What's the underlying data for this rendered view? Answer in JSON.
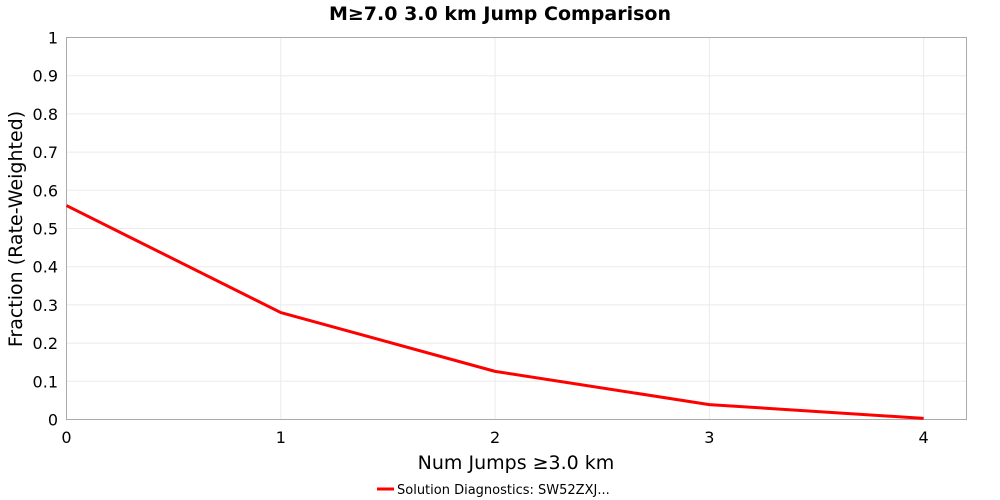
{
  "chart_data": {
    "type": "line",
    "title": "M≥7.0 3.0 km Jump Comparison",
    "xlabel": "Num Jumps ≥3.0 km",
    "ylabel": "Fraction (Rate-Weighted)",
    "xlim": [
      0,
      4.2
    ],
    "ylim": [
      0,
      1
    ],
    "xticks": [
      "0",
      "1",
      "2",
      "3",
      "4"
    ],
    "yticks": [
      "0",
      "0.1",
      "0.2",
      "0.3",
      "0.4",
      "0.5",
      "0.6",
      "0.7",
      "0.8",
      "0.9",
      "1"
    ],
    "grid": true,
    "legend_position": "bottom-center",
    "series": [
      {
        "name": "Solution Diagnostics: SW52ZXJ...",
        "color": "#ff0000",
        "x": [
          0,
          1,
          2,
          3,
          4
        ],
        "y": [
          0.56,
          0.28,
          0.126,
          0.039,
          0.003
        ]
      }
    ]
  }
}
